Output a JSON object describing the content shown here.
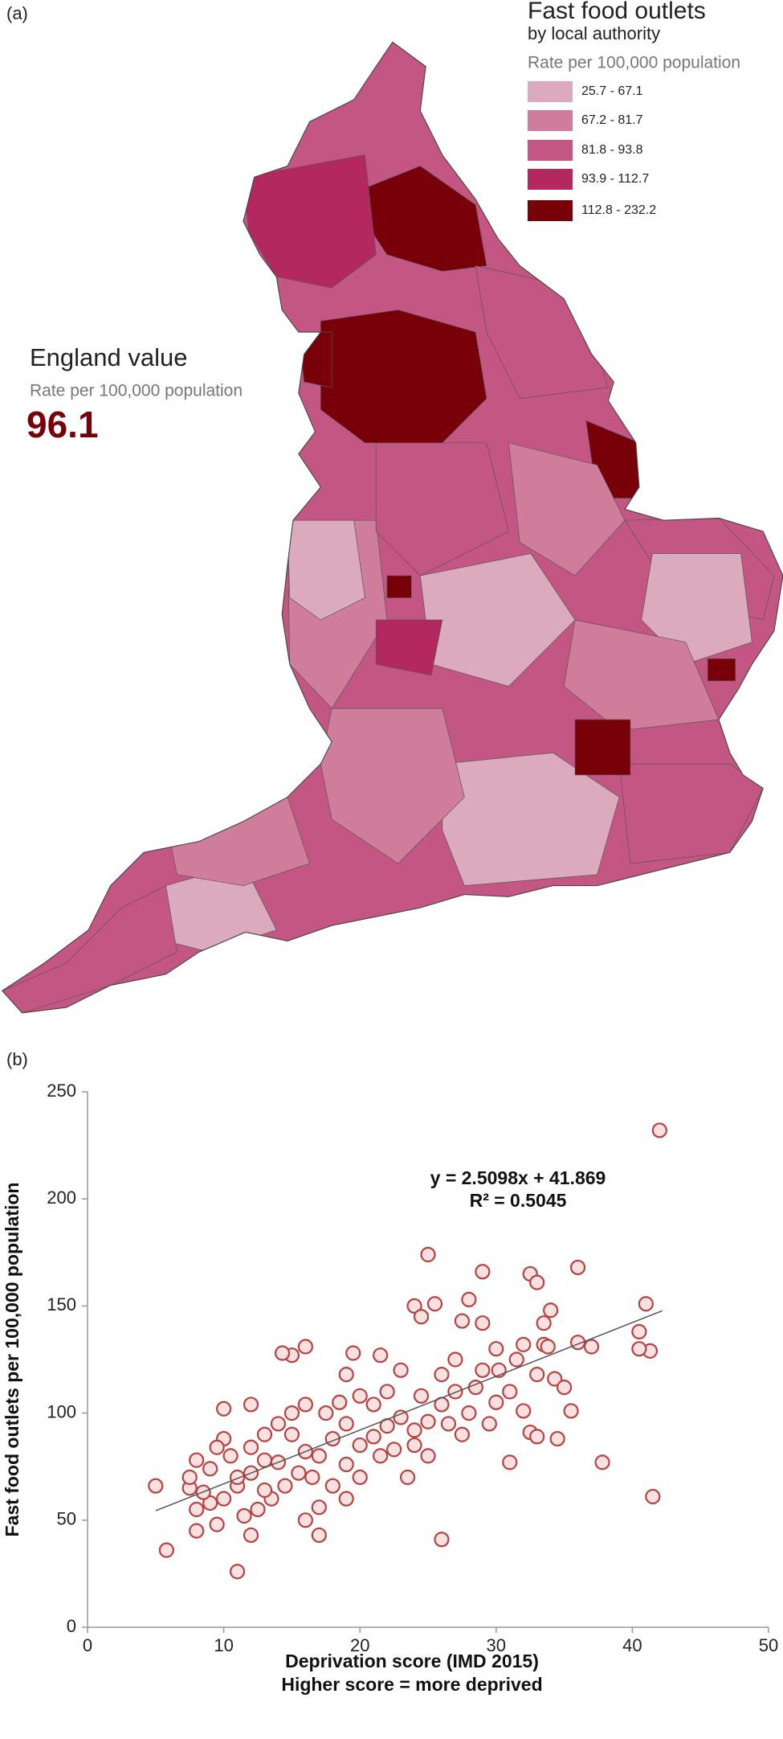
{
  "panel_a": {
    "label": "(a)",
    "legend": {
      "title": "Fast food outlets",
      "subtitle": "by local authority",
      "unit": "Rate per 100,000 population",
      "classes": [
        {
          "label": "25.7 - 67.1",
          "color": "#dcaabd"
        },
        {
          "label": "67.2 - 81.7",
          "color": "#d07c9b"
        },
        {
          "label": "81.8 - 93.8",
          "color": "#c45683"
        },
        {
          "label": "93.9 - 112.7",
          "color": "#b3285f"
        },
        {
          "label": "112.8 - 232.2",
          "color": "#780008"
        }
      ]
    },
    "england": {
      "title": "England value",
      "unit": "Rate per 100,000 population",
      "value": 96.1,
      "color": "#780008"
    }
  },
  "chart_data": {
    "type": "scatter",
    "label": "(b)",
    "xlabel": [
      "Deprivation score (IMD 2015)",
      "Higher  score = more deprived"
    ],
    "ylabel": "Fast food outlets per 100,000 population",
    "annotations": [
      "y = 2.5098x + 41.869",
      "R² = 0.5045"
    ],
    "xlim": [
      0,
      50
    ],
    "ylim": [
      0,
      250
    ],
    "xticks": [
      0,
      10,
      20,
      30,
      40,
      50
    ],
    "yticks": [
      0,
      50,
      100,
      150,
      200,
      250
    ],
    "color": "#fbe0e2",
    "edgecolor": "#b5433f",
    "trendline": {
      "x": [
        5,
        42.2
      ],
      "slope": 2.5098,
      "intercept": 41.869,
      "color": "#555555"
    },
    "x": [
      42,
      25,
      36,
      29,
      32.5,
      33,
      16,
      15,
      14.3,
      41,
      28,
      25.5,
      41.3,
      40.5,
      40.5,
      41.5,
      37.8,
      35.5,
      34.5,
      32.5,
      33,
      31,
      26,
      17,
      5.8,
      11,
      5,
      7.5,
      8,
      9.5,
      10,
      10,
      9,
      12,
      12,
      19,
      20,
      23.5,
      19.5,
      21.5,
      23,
      24,
      24.5,
      34,
      33.5,
      33.5,
      33.8,
      34.3,
      36,
      37,
      30,
      27.5,
      29,
      30.2,
      27,
      26,
      25,
      24,
      22,
      21,
      20,
      19,
      18,
      17,
      16,
      15,
      14,
      13,
      12,
      11,
      10,
      9,
      8,
      8.5,
      7.5,
      11.5,
      12.5,
      13.5,
      14.5,
      15.5,
      16.5,
      17.5,
      18.5,
      19,
      20,
      21,
      22,
      23,
      24,
      25,
      26,
      27,
      28,
      28.5,
      29,
      30,
      31,
      31.5,
      32,
      33,
      35,
      13,
      14,
      15,
      16,
      12,
      10.5,
      9.5,
      13,
      16,
      18,
      21.5,
      22.5,
      26.5,
      27.5,
      19,
      17,
      8,
      11,
      24.5,
      29.5,
      32
    ],
    "values": [
      232,
      174,
      168,
      166,
      165,
      161,
      131,
      127,
      128,
      151,
      153,
      151,
      129,
      138,
      130,
      61,
      77,
      101,
      88,
      91,
      89,
      77,
      41,
      43,
      36,
      26,
      66,
      65,
      45,
      48,
      102,
      88,
      74,
      104,
      43,
      60,
      70,
      70,
      128,
      127,
      120,
      150,
      145,
      148,
      142,
      132,
      131,
      116,
      133,
      131,
      130,
      143,
      142,
      120,
      110,
      104,
      96,
      92,
      94,
      89,
      85,
      95,
      88,
      80,
      82,
      90,
      77,
      78,
      72,
      66,
      60,
      58,
      55,
      63,
      70,
      52,
      55,
      60,
      66,
      72,
      70,
      100,
      105,
      118,
      108,
      104,
      110,
      98,
      85,
      80,
      118,
      125,
      100,
      112,
      120,
      105,
      110,
      125,
      101,
      118,
      112,
      90,
      95,
      100,
      104,
      84,
      80,
      84,
      64,
      50,
      66,
      80,
      83,
      95,
      90,
      76,
      56,
      78,
      70,
      108,
      95,
      132
    ]
  }
}
